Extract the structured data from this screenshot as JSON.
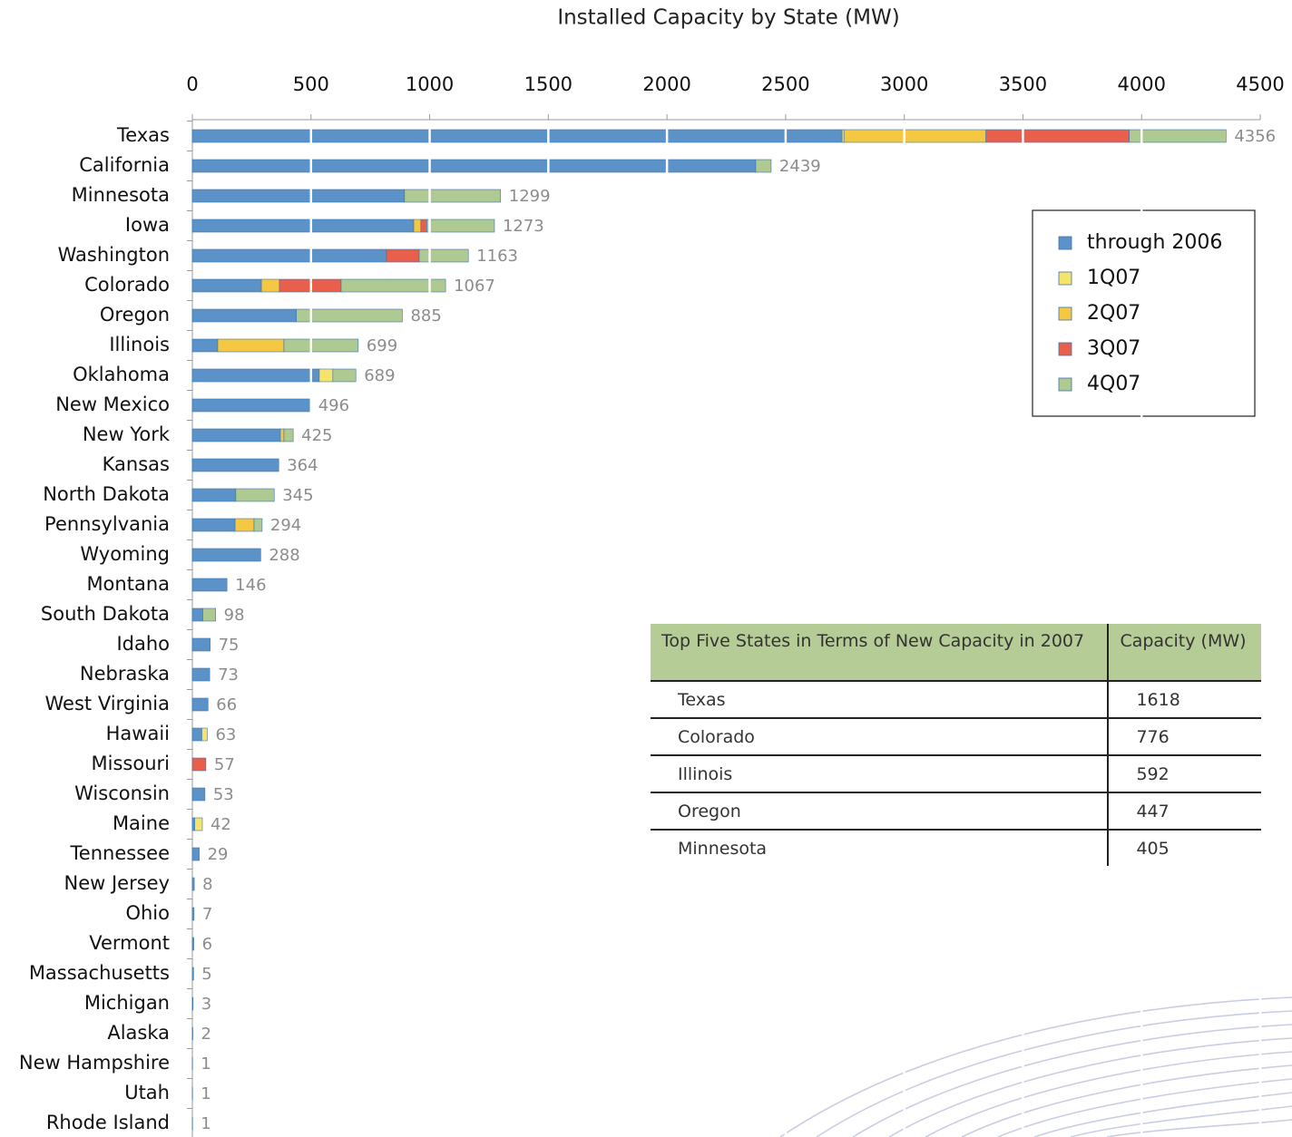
{
  "chart_data": {
    "type": "stacked-bar-horizontal",
    "title": "Installed Capacity by State (MW)",
    "categories": [
      "Texas",
      "California",
      "Minnesota",
      "Iowa",
      "Washington",
      "Colorado",
      "Oregon",
      "Illinois",
      "Oklahoma",
      "New Mexico",
      "New York",
      "Kansas",
      "North Dakota",
      "Pennsylvania",
      "Wyoming",
      "Montana",
      "South Dakota",
      "Idaho",
      "Nebraska",
      "West Virginia",
      "Hawaii",
      "Missouri",
      "Wisconsin",
      "Maine",
      "Tennessee",
      "New Jersey",
      "Ohio",
      "Vermont",
      "Massachusetts",
      "Michigan",
      "Alaska",
      "New Hampshire",
      "Utah",
      "Rhode Island"
    ],
    "series": [
      {
        "name": "through 2006",
        "color": "#5b93c9",
        "values": [
          2738,
          2374,
          894,
          933,
          818,
          291,
          438,
          107,
          535,
          496,
          371,
          364,
          183,
          180,
          288,
          146,
          44,
          75,
          73,
          66,
          40,
          null,
          53,
          10,
          29,
          8,
          7,
          6,
          5,
          3,
          2,
          1,
          1,
          1
        ]
      },
      {
        "name": "1Q07",
        "color": "#f6e36c",
        "values": [
          8,
          null,
          null,
          null,
          null,
          null,
          null,
          null,
          57,
          null,
          null,
          null,
          null,
          null,
          null,
          null,
          null,
          null,
          null,
          null,
          23,
          null,
          null,
          32,
          null,
          null,
          null,
          null,
          null,
          null,
          null,
          null,
          null,
          null
        ]
      },
      {
        "name": "2Q07",
        "color": "#f5c843",
        "values": [
          598,
          null,
          null,
          30,
          null,
          76,
          null,
          279,
          null,
          null,
          15,
          null,
          null,
          80,
          null,
          null,
          null,
          null,
          null,
          null,
          null,
          null,
          null,
          null,
          null,
          null,
          null,
          null,
          null,
          null,
          null,
          null,
          null,
          null
        ]
      },
      {
        "name": "3Q07",
        "color": "#e8604c",
        "values": [
          604,
          null,
          null,
          25,
          138,
          260,
          null,
          null,
          null,
          null,
          null,
          null,
          null,
          null,
          null,
          null,
          null,
          null,
          null,
          null,
          null,
          57,
          null,
          null,
          null,
          null,
          null,
          null,
          null,
          null,
          null,
          null,
          null,
          null
        ]
      },
      {
        "name": "4Q07",
        "color": "#afc992",
        "values": [
          408,
          65,
          405,
          285,
          207,
          440,
          447,
          313,
          97,
          null,
          39,
          null,
          162,
          34,
          null,
          null,
          54,
          null,
          null,
          null,
          null,
          null,
          null,
          null,
          null,
          null,
          null,
          null,
          null,
          null,
          null,
          null,
          null,
          null
        ]
      }
    ],
    "totals": [
      4356,
      2439,
      1299,
      1273,
      1163,
      1067,
      885,
      699,
      689,
      496,
      425,
      364,
      345,
      294,
      288,
      146,
      98,
      75,
      73,
      66,
      63,
      57,
      53,
      42,
      29,
      8,
      7,
      6,
      5,
      3,
      2,
      1,
      1,
      1
    ],
    "xlim": [
      0,
      4500
    ],
    "xticks": [
      0,
      500,
      1000,
      1500,
      2000,
      2500,
      3000,
      3500,
      4000,
      4500
    ],
    "grid": true,
    "legend": "right"
  },
  "table": {
    "header": [
      "Top Five States in Terms of New Capacity in 2007",
      "Capacity (MW)"
    ],
    "rows": [
      [
        "Texas",
        1618
      ],
      [
        "Colorado",
        776
      ],
      [
        "Illinois",
        592
      ],
      [
        "Oregon",
        447
      ],
      [
        "Minnesota",
        405
      ]
    ]
  }
}
